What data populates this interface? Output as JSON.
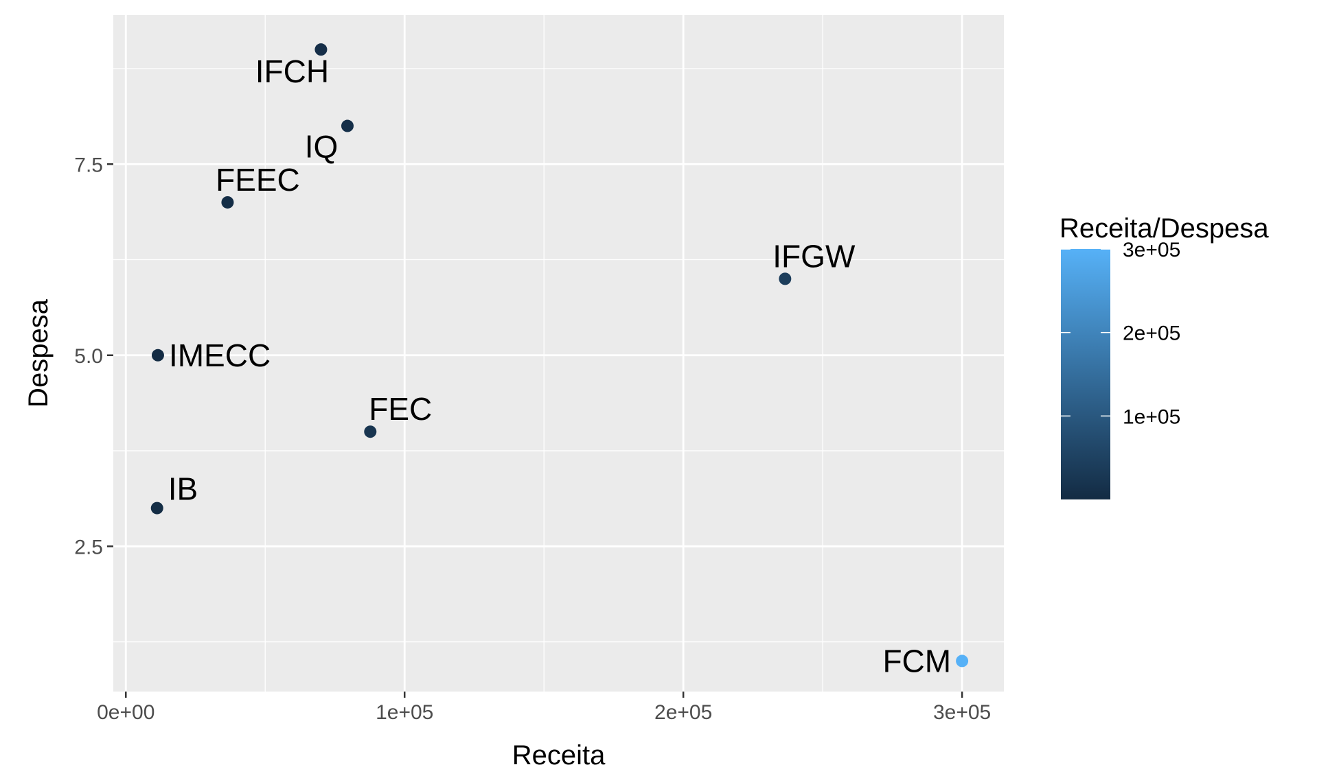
{
  "chart_data": {
    "type": "scatter",
    "xlabel": "Receita",
    "ylabel": "Despesa",
    "xlim": [
      -4500,
      315000
    ],
    "ylim": [
      0.6,
      9.45
    ],
    "x_ticks": [
      0,
      100000,
      200000,
      300000
    ],
    "x_tick_labels": [
      "0e+00",
      "1e+05",
      "2e+05",
      "3e+05"
    ],
    "y_ticks": [
      2.5,
      5.0,
      7.5
    ],
    "y_tick_labels": [
      "2.5",
      "5.0",
      "7.5"
    ],
    "grid": true,
    "points": [
      {
        "label": "IFCH",
        "x": 70000,
        "y": 9,
        "color_value": 7778
      },
      {
        "label": "IQ",
        "x": 79500,
        "y": 8,
        "color_value": 9938
      },
      {
        "label": "FEEC",
        "x": 36500,
        "y": 7,
        "color_value": 5214
      },
      {
        "label": "IFGW",
        "x": 236500,
        "y": 6,
        "color_value": 39417
      },
      {
        "label": "IMECC",
        "x": 11500,
        "y": 5,
        "color_value": 2300
      },
      {
        "label": "FEC",
        "x": 87700,
        "y": 4,
        "color_value": 21925
      },
      {
        "label": "IB",
        "x": 11200,
        "y": 3,
        "color_value": 3733
      },
      {
        "label": "FCM",
        "x": 300000,
        "y": 1,
        "color_value": 300000
      }
    ],
    "legend": {
      "title": "Receita/Despesa",
      "type": "colorbar",
      "range": [
        0,
        300000
      ],
      "breaks": [
        100000,
        200000,
        300000
      ],
      "break_labels": [
        "1e+05",
        "2e+05",
        "3e+05"
      ],
      "color_low": "#132B43",
      "color_high": "#56B1F7",
      "placement": "right"
    },
    "colors": {
      "panel_background": "#EBEBEB",
      "grid": "#FFFFFF",
      "tick_text": "#4D4D4D"
    }
  }
}
